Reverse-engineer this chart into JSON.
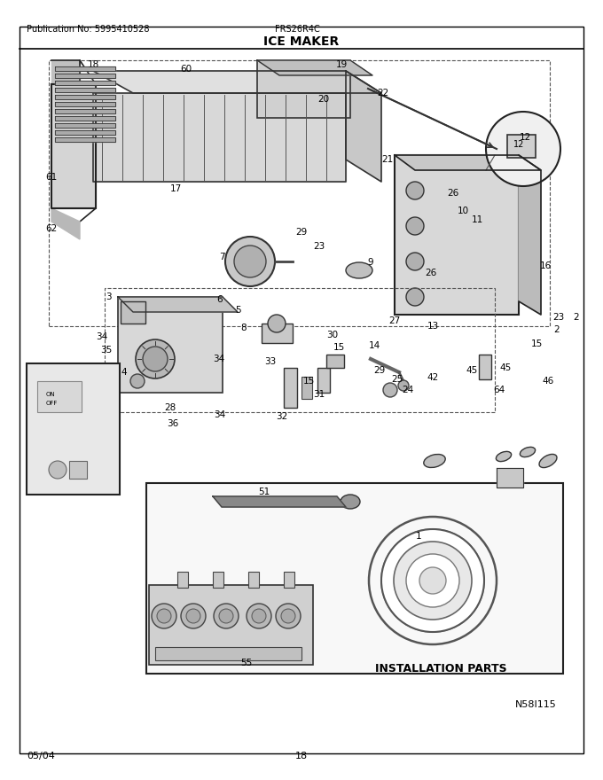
{
  "title": "ICE MAKER",
  "pub_no": "Publication No: 5995410528",
  "model": "FRS26R4C",
  "date": "05/04",
  "page": "18",
  "diagram_id": "N58I115",
  "bg_color": "#ffffff",
  "border_color": "#000000",
  "text_color": "#000000",
  "fig_width": 6.8,
  "fig_height": 8.8,
  "dpi": 100,
  "installation_parts_label": "INSTALLATION PARTS"
}
